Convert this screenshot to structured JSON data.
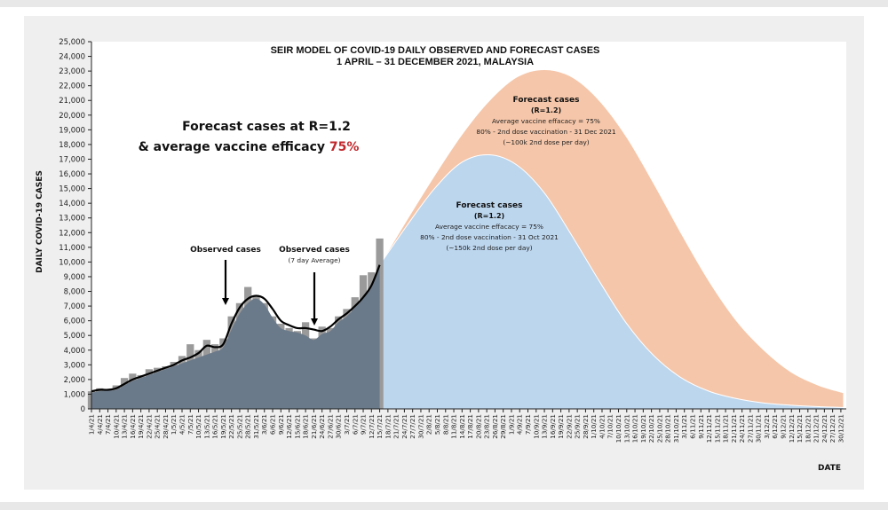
{
  "chart_data": {
    "type": "area",
    "title": "SEIR MODEL OF COVID-19 DAILY OBSERVED AND FORECAST CASES",
    "subtitle": "1 APRIL – 31 DECEMBER 2021, MALAYSIA",
    "xlabel": "DATE",
    "ylabel": "DAILY COVID-19 CASES",
    "ylim": [
      0,
      25000
    ],
    "y_ticks": [
      "0",
      "1,000",
      "2,000",
      "3,000",
      "4,000",
      "5,000",
      "6,000",
      "7,000",
      "8,000",
      "9,000",
      "10,000",
      "11,000",
      "12,000",
      "13,000",
      "14,000",
      "15,000",
      "16,000",
      "17,000",
      "18,000",
      "19,000",
      "20,000",
      "21,000",
      "22,000",
      "23,000",
      "24,000",
      "25,000"
    ],
    "x_range": [
      "1/4/21",
      "31/12/21"
    ],
    "x_ticks": [
      "1/4/21",
      "4/4/21",
      "7/4/21",
      "10/4/21",
      "13/4/21",
      "16/4/21",
      "19/4/21",
      "22/4/21",
      "25/4/21",
      "28/4/21",
      "1/5/21",
      "4/5/21",
      "7/5/21",
      "10/5/21",
      "13/5/21",
      "16/5/21",
      "19/5/21",
      "22/5/21",
      "25/5/21",
      "28/5/21",
      "31/5/21",
      "3/6/21",
      "6/6/21",
      "9/6/21",
      "12/6/21",
      "15/6/21",
      "18/6/21",
      "21/6/21",
      "24/6/21",
      "27/6/21",
      "30/6/21",
      "3/7/21",
      "6/7/21",
      "9/7/21",
      "12/7/21",
      "15/7/21",
      "18/7/21",
      "21/7/21",
      "24/7/21",
      "27/7/21",
      "30/7/21",
      "2/8/21",
      "5/8/21",
      "8/8/21",
      "11/8/21",
      "14/8/21",
      "17/8/21",
      "20/8/21",
      "23/8/21",
      "26/8/21",
      "29/8/21",
      "1/9/21",
      "4/9/21",
      "7/9/21",
      "10/9/21",
      "13/9/21",
      "16/9/21",
      "19/9/21",
      "22/9/21",
      "25/9/21",
      "28/9/21",
      "1/10/21",
      "4/10/21",
      "7/10/21",
      "10/10/21",
      "13/10/21",
      "16/10/21",
      "19/10/21",
      "22/10/21",
      "25/10/21",
      "28/10/21",
      "31/10/21",
      "3/11/21",
      "6/11/21",
      "9/11/21",
      "12/11/21",
      "15/11/21",
      "18/11/21",
      "21/11/21",
      "24/11/21",
      "27/11/21",
      "30/11/21",
      "3/12/21",
      "6/12/21",
      "9/12/21",
      "12/12/21",
      "15/12/21",
      "18/12/21",
      "21/12/21",
      "24/12/21",
      "27/12/21",
      "30/12/21"
    ],
    "series": [
      {
        "name": "Observed cases",
        "type": "bar",
        "color": "#9a9a9a",
        "x_day_index": [
          0,
          3,
          6,
          9,
          12,
          15,
          18,
          21,
          24,
          27,
          30,
          33,
          36,
          39,
          42,
          45,
          48,
          51,
          54,
          57,
          60,
          63,
          66,
          69,
          72,
          75,
          78,
          81,
          84,
          87,
          90,
          93,
          96,
          99,
          102,
          105
        ],
        "values": [
          1200,
          1400,
          1350,
          1600,
          2100,
          2400,
          2300,
          2700,
          2800,
          2900,
          3200,
          3600,
          4400,
          4000,
          4700,
          4400,
          4800,
          6300,
          7200,
          8300,
          7700,
          7200,
          6300,
          5800,
          5500,
          5300,
          5900,
          4800,
          5600,
          5500,
          6300,
          6800,
          7600,
          9100,
          9300,
          11600
        ]
      },
      {
        "name": "Observed cases (7 day Average)",
        "type": "line",
        "color": "#000000",
        "x_day_index": [
          0,
          3,
          6,
          9,
          12,
          15,
          18,
          21,
          24,
          27,
          30,
          33,
          36,
          39,
          42,
          45,
          48,
          51,
          54,
          57,
          60,
          63,
          66,
          69,
          72,
          75,
          78,
          81,
          84,
          87,
          90,
          93,
          96,
          99,
          102,
          105
        ],
        "values": [
          1200,
          1300,
          1300,
          1400,
          1700,
          2000,
          2200,
          2400,
          2600,
          2800,
          3000,
          3300,
          3500,
          3800,
          4300,
          4200,
          4400,
          5800,
          6900,
          7500,
          7700,
          7500,
          6800,
          6000,
          5700,
          5500,
          5500,
          5400,
          5300,
          5600,
          6100,
          6500,
          7000,
          7600,
          8400,
          9800
        ]
      },
      {
        "name": "Forecast cases (R=1.2) – 80% 2nd dose by 31 Dec 2021",
        "type": "area",
        "color": "#f5c6a9",
        "x_day_index": [
          105,
          115,
          125,
          135,
          145,
          155,
          165,
          175,
          185,
          195,
          205,
          215,
          225,
          235,
          245,
          255,
          265,
          274
        ],
        "values": [
          9800,
          12900,
          15900,
          18700,
          21000,
          22600,
          23100,
          22600,
          21000,
          18500,
          15300,
          11900,
          8700,
          6000,
          4000,
          2500,
          1600,
          1100
        ]
      },
      {
        "name": "Forecast cases (R=1.2) – 80% 2nd dose by 31 Oct 2021",
        "type": "area",
        "color": "#bcd6ee",
        "x_day_index": [
          105,
          115,
          125,
          135,
          145,
          155,
          165,
          175,
          185,
          195,
          205,
          215,
          225,
          235,
          245,
          255,
          265,
          274
        ],
        "values": [
          9800,
          12500,
          15000,
          16800,
          17300,
          16600,
          14700,
          11800,
          8700,
          5800,
          3600,
          2100,
          1200,
          700,
          400,
          250,
          150,
          100
        ]
      },
      {
        "name": "Observed (base area)",
        "type": "area",
        "color": "#6b7a8a",
        "x_day_index": [
          0,
          3,
          6,
          9,
          12,
          15,
          18,
          21,
          24,
          27,
          30,
          33,
          36,
          39,
          42,
          45,
          48,
          51,
          54,
          57,
          60,
          63,
          66,
          69,
          72,
          75,
          78,
          81,
          84,
          87,
          90,
          93,
          96,
          99,
          102,
          105
        ],
        "values": [
          1100,
          1200,
          1250,
          1300,
          1600,
          1900,
          2100,
          2300,
          2500,
          2700,
          2900,
          3100,
          3300,
          3500,
          3700,
          3900,
          4200,
          5400,
          6500,
          7200,
          7500,
          7100,
          6200,
          5500,
          5300,
          5200,
          5000,
          4700,
          5100,
          5300,
          5900,
          6300,
          6900,
          7500,
          8400,
          9800
        ]
      }
    ],
    "annotations": [
      {
        "id": "main",
        "lines": [
          "Forecast cases at R=1.2",
          "& average vaccine efficacy "
        ],
        "highlight": "75%",
        "highlight_color": "#c0282d"
      },
      {
        "id": "observed",
        "lines": [
          "Observed cases"
        ]
      },
      {
        "id": "observed-avg",
        "lines": [
          "Observed cases",
          "(7 day Average)"
        ]
      },
      {
        "id": "forecast-dec",
        "lines": [
          "Forecast cases",
          "(R=1.2)",
          "Average vaccine effacacy = 75%",
          "80% - 2nd dose vaccination - 31 Dec 2021",
          "(~100k 2nd dose per day)"
        ]
      },
      {
        "id": "forecast-oct",
        "lines": [
          "Forecast cases",
          "(R=1.2)",
          "Average vaccine effacacy = 75%",
          "80% - 2nd dose vaccination - 31 Oct 2021",
          "(~150k 2nd dose per day)"
        ]
      }
    ],
    "grid": false,
    "legend": "none"
  }
}
